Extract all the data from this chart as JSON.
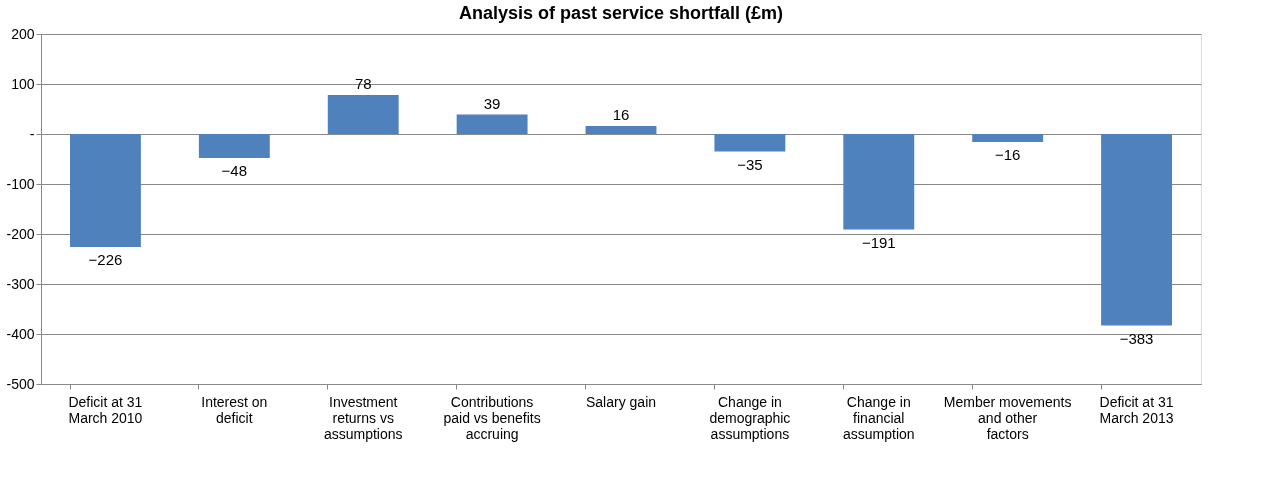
{
  "chart_data": {
    "type": "bar",
    "title": "Analysis of past service shortfall (£m)",
    "categories": [
      "Deficit at 31 March 2010",
      "Interest on deficit",
      "Investment returns vs assumptions",
      "Contributions paid vs benefits accruing",
      "Salary gain",
      "Change in demographic assumptions",
      "Change in financial assumption",
      "Member movements and other factors",
      "Deficit at 31 March 2013"
    ],
    "values": [
      -226,
      -48,
      78,
      39,
      16,
      -35,
      -191,
      -16,
      -383
    ],
    "color": "#4f81bd",
    "ylim": [
      -500,
      200
    ],
    "yticks": [
      -500,
      -400,
      -300,
      -200,
      -100,
      {
        "value": 0,
        "label": "-"
      },
      100,
      200
    ],
    "grid": "y",
    "data_labels": true
  }
}
